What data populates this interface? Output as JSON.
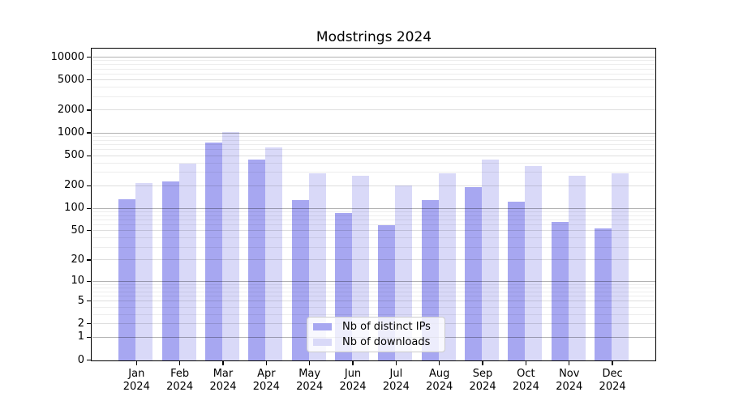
{
  "title": "Modstrings 2024",
  "chart_data": {
    "type": "bar",
    "title": "Modstrings 2024",
    "categories": [
      "Jan 2024",
      "Feb 2024",
      "Mar 2024",
      "Apr 2024",
      "May 2024",
      "Jun 2024",
      "Jul 2024",
      "Aug 2024",
      "Sep 2024",
      "Oct 2024",
      "Nov 2024",
      "Dec 2024"
    ],
    "x_tick_months": [
      "Jan",
      "Feb",
      "Mar",
      "Apr",
      "May",
      "Jun",
      "Jul",
      "Aug",
      "Sep",
      "Oct",
      "Nov",
      "Dec"
    ],
    "x_tick_year": "2024",
    "series": [
      {
        "name": "Nb of distinct IPs",
        "color": "#a7a7f1",
        "values": [
          133,
          226,
          745,
          440,
          129,
          86,
          59,
          130,
          192,
          122,
          65,
          54
        ]
      },
      {
        "name": "Nb of downloads",
        "color": "#d9d9f8",
        "values": [
          218,
          395,
          1030,
          635,
          292,
          272,
          202,
          295,
          445,
          360,
          268,
          290
        ]
      }
    ],
    "yscale": "symlog",
    "yticks": [
      0,
      1,
      2,
      5,
      10,
      20,
      50,
      100,
      200,
      500,
      1000,
      2000,
      5000,
      10000
    ],
    "ytick_labels": [
      "0",
      "1",
      "2",
      "5",
      "10",
      "20",
      "50",
      "100",
      "200",
      "500",
      "1000",
      "2000",
      "5000",
      "10000"
    ],
    "ylim": [
      0,
      13000
    ],
    "xlabel": "",
    "ylabel": "",
    "grid": "horizontal",
    "legend_position": "lower center"
  },
  "legend": {
    "items": [
      {
        "label": "Nb of distinct IPs",
        "color": "#a7a7f1"
      },
      {
        "label": "Nb of downloads",
        "color": "#d9d9f8"
      }
    ]
  },
  "colors": {
    "background": "#ffffff",
    "spine": "#000000",
    "major_grid": "#b3b3b3",
    "mid_grid": "#dedede",
    "minor_grid": "#ededed",
    "legend_border": "#cccccc"
  }
}
